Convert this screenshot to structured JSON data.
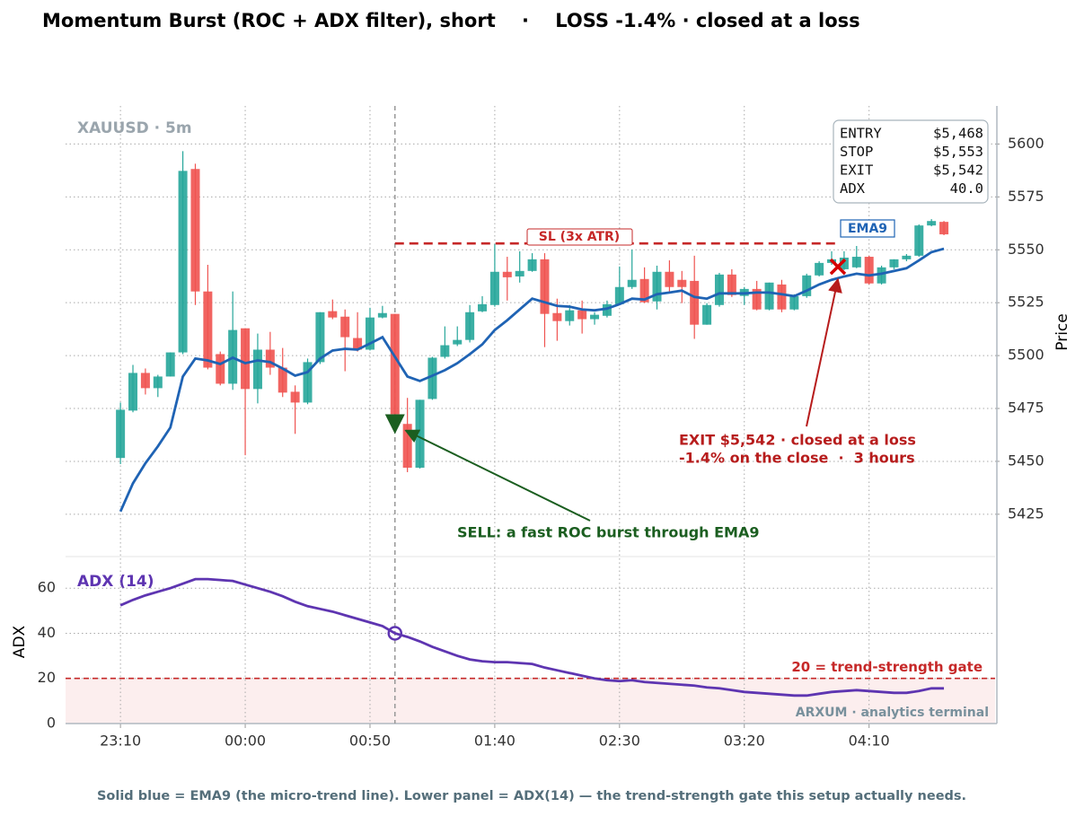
{
  "title": "Momentum Burst (ROC + ADX filter), short    ·    LOSS -1.4% · closed at a loss",
  "caption": "Solid blue = EMA9 (the micro-trend line). Lower panel = ADX(14) — the trend-strength gate this setup actually needs.",
  "chart_data": [
    {
      "type": "candlestick",
      "label": "XAUUSD · 5m",
      "ylabel": "Price",
      "x": [
        0,
        1,
        2,
        3,
        4,
        5,
        6,
        7,
        8,
        9,
        10,
        11,
        12,
        13,
        14,
        15,
        16,
        17,
        18,
        19,
        20,
        21,
        22,
        23,
        24,
        25,
        26,
        27,
        28,
        29,
        30,
        31,
        32,
        33,
        34,
        35,
        36,
        37,
        38,
        39,
        40,
        41,
        42,
        43,
        44,
        45,
        46,
        47,
        48,
        49,
        50,
        51,
        52,
        53,
        54,
        55,
        56,
        57,
        58,
        59,
        60,
        61,
        62,
        63,
        64,
        65,
        66
      ],
      "xlim": [
        -4.4,
        70.1
      ],
      "xticks": [
        {
          "value": 0,
          "label": "23:10"
        },
        {
          "value": 10,
          "label": "00:00"
        },
        {
          "value": 20,
          "label": "00:50"
        },
        {
          "value": 30,
          "label": "01:40"
        },
        {
          "value": 40,
          "label": "02:30"
        },
        {
          "value": 50,
          "label": "03:20"
        },
        {
          "value": 60,
          "label": "04:10"
        }
      ],
      "ylim": [
        5405,
        5618
      ],
      "yticks": [
        5425,
        5450,
        5475,
        5500,
        5525,
        5550,
        5575,
        5600
      ],
      "grid": true,
      "up_color": "#26a69a",
      "down_color": "#ef5350",
      "open": [
        5451.6,
        5474.0,
        5491.8,
        5484.6,
        5490.1,
        5501.5,
        5588.2,
        5530.3,
        5500.7,
        5486.7,
        5512.9,
        5484.2,
        5502.8,
        5494.3,
        5482.9,
        5477.8,
        5496.9,
        5521.0,
        5518.4,
        5508.3,
        5502.8,
        5518.0,
        5519.7,
        5467.7,
        5447.0,
        5479.5,
        5499.4,
        5505.3,
        5507.4,
        5520.9,
        5523.9,
        5539.6,
        5537.4,
        5540.0,
        5545.5,
        5520.1,
        5516.3,
        5521.4,
        5517.2,
        5518.8,
        5524.3,
        5532.4,
        5536.2,
        5525.6,
        5539.6,
        5535.8,
        5535.3,
        5514.6,
        5523.9,
        5538.3,
        5528.2,
        5531.5,
        5521.8,
        5533.6,
        5521.8,
        5528.1,
        5537.9,
        5543.8,
        5540.8,
        5541.7,
        5546.7,
        5534.1,
        5541.7,
        5545.5,
        5547.2,
        5561.5,
        5563.2
      ],
      "high": [
        5477.8,
        5495.6,
        5493.9,
        5490.9,
        5501.5,
        5596.6,
        5590.7,
        5542.9,
        5501.9,
        5530.3,
        5512.9,
        5510.4,
        5511.2,
        5503.6,
        5485.9,
        5498.6,
        5520.5,
        5526.5,
        5521.8,
        5520.5,
        5522.6,
        5523.5,
        5519.7,
        5480.0,
        5479.1,
        5499.4,
        5513.8,
        5513.8,
        5523.9,
        5528.1,
        5552.7,
        5546.7,
        5549.3,
        5548.4,
        5548.4,
        5526.9,
        5523.9,
        5526.0,
        5520.5,
        5526.0,
        5542.1,
        5550.1,
        5541.7,
        5542.5,
        5545.0,
        5540.0,
        5547.2,
        5524.8,
        5539.1,
        5540.8,
        5532.4,
        5535.3,
        5534.5,
        5535.8,
        5529.0,
        5538.7,
        5544.6,
        5549.3,
        5549.3,
        5551.8,
        5547.2,
        5542.5,
        5545.5,
        5548.0,
        5562.0,
        5564.5,
        5563.6
      ],
      "low": [
        5448.7,
        5473.2,
        5481.6,
        5480.4,
        5490.1,
        5500.7,
        5523.9,
        5493.5,
        5485.9,
        5483.8,
        5452.9,
        5477.4,
        5490.9,
        5480.4,
        5463.0,
        5477.0,
        5496.0,
        5517.2,
        5492.6,
        5501.9,
        5502.4,
        5517.6,
        5472.3,
        5444.9,
        5446.6,
        5479.1,
        5498.6,
        5504.5,
        5506.2,
        5520.5,
        5523.1,
        5526.0,
        5534.5,
        5539.6,
        5504.0,
        5507.0,
        5514.2,
        5510.4,
        5514.6,
        5518.0,
        5523.9,
        5531.5,
        5524.8,
        5521.8,
        5530.3,
        5524.8,
        5507.9,
        5514.6,
        5523.1,
        5527.7,
        5523.9,
        5521.4,
        5521.4,
        5520.5,
        5521.4,
        5527.3,
        5537.4,
        5542.9,
        5540.4,
        5541.3,
        5533.6,
        5533.6,
        5540.8,
        5544.6,
        5546.7,
        5561.1,
        5556.9
      ],
      "close": [
        5474.4,
        5491.8,
        5484.6,
        5490.1,
        5501.5,
        5587.3,
        5530.3,
        5494.3,
        5486.7,
        5512.1,
        5484.2,
        5502.8,
        5494.3,
        5482.5,
        5477.8,
        5496.9,
        5520.5,
        5518.0,
        5508.7,
        5502.8,
        5518.0,
        5520.1,
        5472.3,
        5447.0,
        5479.1,
        5499.0,
        5504.9,
        5507.4,
        5520.5,
        5524.3,
        5539.6,
        5537.0,
        5540.0,
        5545.5,
        5519.7,
        5516.3,
        5521.4,
        5517.2,
        5519.3,
        5524.3,
        5532.4,
        5535.8,
        5525.2,
        5539.6,
        5532.4,
        5532.4,
        5514.6,
        5523.9,
        5538.3,
        5528.6,
        5531.5,
        5521.8,
        5534.5,
        5521.8,
        5528.1,
        5537.9,
        5543.8,
        5545.5,
        5546.3,
        5546.7,
        5534.1,
        5541.7,
        5545.5,
        5547.2,
        5561.5,
        5563.6,
        5557.3
      ],
      "series": [
        {
          "name": "EMA9",
          "color": "#1f63b4",
          "values": [
            5426.3,
            5439.6,
            5449.1,
            5457.1,
            5466.0,
            5490.1,
            5498.6,
            5497.7,
            5496.0,
            5499.0,
            5496.4,
            5497.7,
            5496.9,
            5493.9,
            5490.5,
            5492.2,
            5498.6,
            5502.4,
            5503.2,
            5502.8,
            5505.7,
            5508.7,
            5499.4,
            5490.1,
            5488.0,
            5490.5,
            5493.1,
            5496.4,
            5500.7,
            5505.3,
            5512.1,
            5516.7,
            5521.8,
            5526.9,
            5525.2,
            5523.5,
            5523.1,
            5521.8,
            5521.4,
            5522.2,
            5524.3,
            5526.9,
            5526.5,
            5529.0,
            5529.8,
            5530.7,
            5527.7,
            5526.9,
            5529.4,
            5529.4,
            5529.4,
            5529.8,
            5529.8,
            5529.0,
            5528.1,
            5530.7,
            5533.6,
            5535.8,
            5537.4,
            5538.7,
            5537.9,
            5538.7,
            5540.0,
            5541.3,
            5545.0,
            5548.9,
            5550.5
          ]
        }
      ],
      "entry": {
        "x": 22,
        "price": 5468,
        "color": "#1b5e20",
        "note": "SELL: a fast ROC burst through EMA9"
      },
      "stop": {
        "price": 5553,
        "x_from": 22,
        "x_to": 57.5,
        "label": "SL (3x ATR)",
        "color": "#c62828"
      },
      "exit": {
        "x": 57.5,
        "price": 5542,
        "color": "#d50000",
        "note": [
          "EXIT $5,542 · closed at a loss",
          "-1.4% on the close  ·  3 hours"
        ],
        "note_color": "#b71c1c"
      },
      "info_box": [
        [
          "ENTRY",
          "$5,468"
        ],
        [
          "STOP",
          "$5,553"
        ],
        [
          "EXIT",
          "$5,542"
        ],
        [
          "ADX",
          "40.0"
        ]
      ]
    },
    {
      "type": "line",
      "label": "ADX (14)",
      "ylabel": "ADX",
      "color": "#5e35b1",
      "x": [
        0,
        1,
        2,
        3,
        4,
        5,
        6,
        7,
        8,
        9,
        10,
        11,
        12,
        13,
        14,
        15,
        16,
        17,
        18,
        19,
        20,
        21,
        22,
        23,
        24,
        25,
        26,
        27,
        28,
        29,
        30,
        31,
        32,
        33,
        34,
        35,
        36,
        37,
        38,
        39,
        40,
        41,
        42,
        43,
        44,
        45,
        46,
        47,
        48,
        49,
        50,
        51,
        52,
        53,
        54,
        55,
        56,
        57,
        58,
        59,
        60,
        61,
        62,
        63,
        64,
        65,
        66
      ],
      "values": [
        52.4,
        54.8,
        56.8,
        58.4,
        60,
        62,
        64,
        64,
        63.6,
        63.2,
        61.6,
        60,
        58.4,
        56.4,
        54,
        52,
        50.8,
        49.6,
        48,
        46.4,
        44.8,
        43.2,
        40,
        38.4,
        36.4,
        34,
        32,
        30,
        28.4,
        27.6,
        27.2,
        27.2,
        26.8,
        26.4,
        24.8,
        23.6,
        22.4,
        21.2,
        20,
        19.2,
        18.8,
        19.2,
        18.4,
        18,
        17.6,
        17.2,
        16.8,
        16,
        15.6,
        14.8,
        14,
        13.6,
        13.2,
        12.8,
        12.4,
        12.4,
        13.2,
        14,
        14.4,
        14.8,
        14.4,
        14,
        13.6,
        13.6,
        14.4,
        15.6,
        15.6
      ],
      "ylim": [
        0,
        74
      ],
      "yticks": [
        0,
        20,
        40,
        60
      ],
      "grid": true,
      "threshold": {
        "value": 20,
        "label": "20 = trend-strength gate",
        "color": "#c62828"
      },
      "marker": {
        "x": 22,
        "value": 40
      },
      "watermark": "ARXUM · analytics terminal"
    }
  ]
}
